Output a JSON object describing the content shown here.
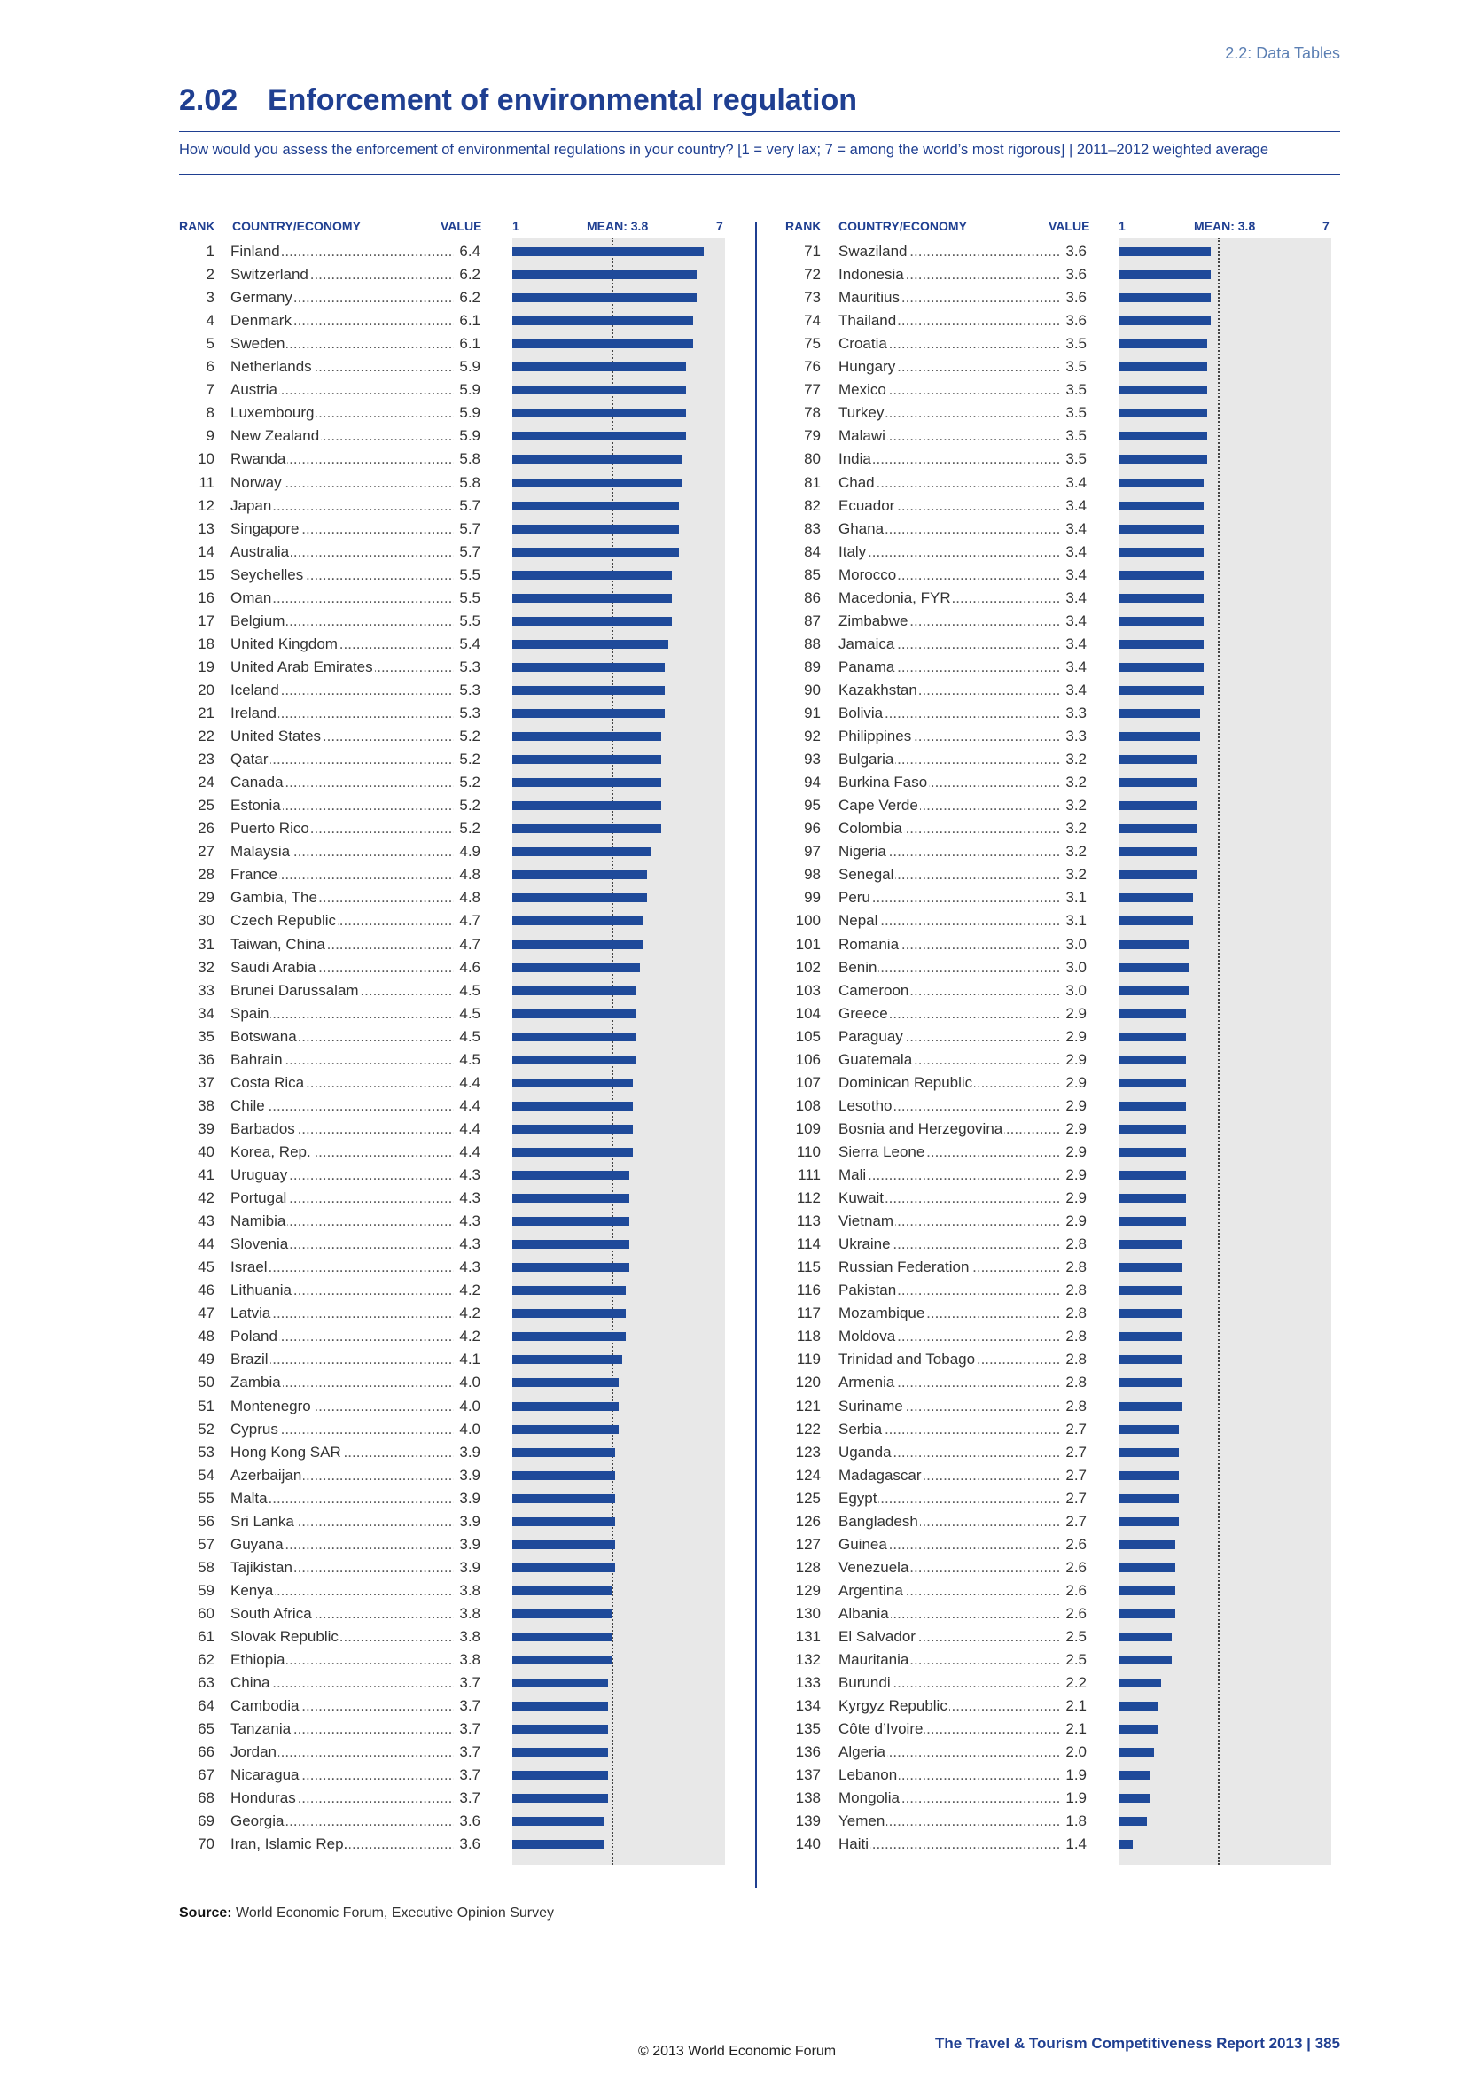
{
  "section_label": "2.2: Data Tables",
  "title_number": "2.02",
  "title_text": "Enforcement of environmental regulation",
  "subtitle": "How would you assess the enforcement of environmental regulations in your country? [1 = very lax; 7 = among the world’s most rigorous] | 2011–2012 weighted average",
  "headers": {
    "rank": "RANK",
    "country": "COUNTRY/ECONOMY",
    "value": "VALUE",
    "scale_min": "1",
    "mean": "MEAN: 3.8",
    "scale_max": "7"
  },
  "source_label": "Source:",
  "source_text": "World Economic Forum, Executive Opinion Survey",
  "copyright": "© 2013 World Economic Forum",
  "footer": "The Travel & Tourism Competitiveness Report 2013 | 385",
  "chart_data": {
    "type": "bar",
    "orientation": "horizontal",
    "xlim": [
      1,
      7
    ],
    "mean": 3.8,
    "bar_color": "#1f4a9a",
    "columns": [
      {
        "rows": [
          {
            "rank": "1",
            "country": "Finland",
            "value": "6.4"
          },
          {
            "rank": "2",
            "country": "Switzerland",
            "value": "6.2"
          },
          {
            "rank": "3",
            "country": "Germany",
            "value": "6.2"
          },
          {
            "rank": "4",
            "country": "Denmark",
            "value": "6.1"
          },
          {
            "rank": "5",
            "country": "Sweden",
            "value": "6.1"
          },
          {
            "rank": "6",
            "country": "Netherlands",
            "value": "5.9"
          },
          {
            "rank": "7",
            "country": "Austria",
            "value": "5.9"
          },
          {
            "rank": "8",
            "country": "Luxembourg",
            "value": "5.9"
          },
          {
            "rank": "9",
            "country": "New Zealand",
            "value": "5.9"
          },
          {
            "rank": "10",
            "country": "Rwanda",
            "value": "5.8"
          },
          {
            "rank": "11",
            "country": "Norway",
            "value": "5.8"
          },
          {
            "rank": "12",
            "country": "Japan",
            "value": "5.7"
          },
          {
            "rank": "13",
            "country": "Singapore",
            "value": "5.7"
          },
          {
            "rank": "14",
            "country": "Australia",
            "value": "5.7"
          },
          {
            "rank": "15",
            "country": "Seychelles",
            "value": "5.5"
          },
          {
            "rank": "16",
            "country": "Oman",
            "value": "5.5"
          },
          {
            "rank": "17",
            "country": "Belgium",
            "value": "5.5"
          },
          {
            "rank": "18",
            "country": "United Kingdom",
            "value": "5.4"
          },
          {
            "rank": "19",
            "country": "United Arab Emirates",
            "value": "5.3"
          },
          {
            "rank": "20",
            "country": "Iceland",
            "value": "5.3"
          },
          {
            "rank": "21",
            "country": "Ireland",
            "value": "5.3"
          },
          {
            "rank": "22",
            "country": "United States",
            "value": "5.2"
          },
          {
            "rank": "23",
            "country": "Qatar",
            "value": "5.2"
          },
          {
            "rank": "24",
            "country": "Canada",
            "value": "5.2"
          },
          {
            "rank": "25",
            "country": "Estonia",
            "value": "5.2"
          },
          {
            "rank": "26",
            "country": "Puerto Rico",
            "value": "5.2"
          },
          {
            "rank": "27",
            "country": "Malaysia",
            "value": "4.9"
          },
          {
            "rank": "28",
            "country": "France",
            "value": "4.8"
          },
          {
            "rank": "29",
            "country": "Gambia, The",
            "value": "4.8"
          },
          {
            "rank": "30",
            "country": "Czech Republic",
            "value": "4.7"
          },
          {
            "rank": "31",
            "country": "Taiwan, China",
            "value": "4.7"
          },
          {
            "rank": "32",
            "country": "Saudi Arabia",
            "value": "4.6"
          },
          {
            "rank": "33",
            "country": "Brunei Darussalam",
            "value": "4.5"
          },
          {
            "rank": "34",
            "country": "Spain",
            "value": "4.5"
          },
          {
            "rank": "35",
            "country": "Botswana",
            "value": "4.5"
          },
          {
            "rank": "36",
            "country": "Bahrain",
            "value": "4.5"
          },
          {
            "rank": "37",
            "country": "Costa Rica",
            "value": "4.4"
          },
          {
            "rank": "38",
            "country": "Chile",
            "value": "4.4"
          },
          {
            "rank": "39",
            "country": "Barbados",
            "value": "4.4"
          },
          {
            "rank": "40",
            "country": "Korea, Rep.",
            "value": "4.4"
          },
          {
            "rank": "41",
            "country": "Uruguay",
            "value": "4.3"
          },
          {
            "rank": "42",
            "country": "Portugal",
            "value": "4.3"
          },
          {
            "rank": "43",
            "country": "Namibia",
            "value": "4.3"
          },
          {
            "rank": "44",
            "country": "Slovenia",
            "value": "4.3"
          },
          {
            "rank": "45",
            "country": "Israel",
            "value": "4.3"
          },
          {
            "rank": "46",
            "country": "Lithuania",
            "value": "4.2"
          },
          {
            "rank": "47",
            "country": "Latvia",
            "value": "4.2"
          },
          {
            "rank": "48",
            "country": "Poland",
            "value": "4.2"
          },
          {
            "rank": "49",
            "country": "Brazil",
            "value": "4.1"
          },
          {
            "rank": "50",
            "country": "Zambia",
            "value": "4.0"
          },
          {
            "rank": "51",
            "country": "Montenegro",
            "value": "4.0"
          },
          {
            "rank": "52",
            "country": "Cyprus",
            "value": "4.0"
          },
          {
            "rank": "53",
            "country": "Hong Kong SAR",
            "value": "3.9"
          },
          {
            "rank": "54",
            "country": "Azerbaijan",
            "value": "3.9"
          },
          {
            "rank": "55",
            "country": "Malta",
            "value": "3.9"
          },
          {
            "rank": "56",
            "country": "Sri Lanka",
            "value": "3.9"
          },
          {
            "rank": "57",
            "country": "Guyana",
            "value": "3.9"
          },
          {
            "rank": "58",
            "country": "Tajikistan",
            "value": "3.9"
          },
          {
            "rank": "59",
            "country": "Kenya",
            "value": "3.8"
          },
          {
            "rank": "60",
            "country": "South Africa",
            "value": "3.8"
          },
          {
            "rank": "61",
            "country": "Slovak Republic",
            "value": "3.8"
          },
          {
            "rank": "62",
            "country": "Ethiopia",
            "value": "3.8"
          },
          {
            "rank": "63",
            "country": "China",
            "value": "3.7"
          },
          {
            "rank": "64",
            "country": "Cambodia",
            "value": "3.7"
          },
          {
            "rank": "65",
            "country": "Tanzania",
            "value": "3.7"
          },
          {
            "rank": "66",
            "country": "Jordan",
            "value": "3.7"
          },
          {
            "rank": "67",
            "country": "Nicaragua",
            "value": "3.7"
          },
          {
            "rank": "68",
            "country": "Honduras",
            "value": "3.7"
          },
          {
            "rank": "69",
            "country": "Georgia",
            "value": "3.6"
          },
          {
            "rank": "70",
            "country": "Iran, Islamic Rep.",
            "value": "3.6"
          }
        ]
      },
      {
        "rows": [
          {
            "rank": "71",
            "country": "Swaziland",
            "value": "3.6"
          },
          {
            "rank": "72",
            "country": "Indonesia",
            "value": "3.6"
          },
          {
            "rank": "73",
            "country": "Mauritius",
            "value": "3.6"
          },
          {
            "rank": "74",
            "country": "Thailand",
            "value": "3.6"
          },
          {
            "rank": "75",
            "country": "Croatia",
            "value": "3.5"
          },
          {
            "rank": "76",
            "country": "Hungary",
            "value": "3.5"
          },
          {
            "rank": "77",
            "country": "Mexico",
            "value": "3.5"
          },
          {
            "rank": "78",
            "country": "Turkey",
            "value": "3.5"
          },
          {
            "rank": "79",
            "country": "Malawi",
            "value": "3.5"
          },
          {
            "rank": "80",
            "country": "India",
            "value": "3.5"
          },
          {
            "rank": "81",
            "country": "Chad",
            "value": "3.4"
          },
          {
            "rank": "82",
            "country": "Ecuador",
            "value": "3.4"
          },
          {
            "rank": "83",
            "country": "Ghana",
            "value": "3.4"
          },
          {
            "rank": "84",
            "country": "Italy",
            "value": "3.4"
          },
          {
            "rank": "85",
            "country": "Morocco",
            "value": "3.4"
          },
          {
            "rank": "86",
            "country": "Macedonia, FYR",
            "value": "3.4"
          },
          {
            "rank": "87",
            "country": "Zimbabwe",
            "value": "3.4"
          },
          {
            "rank": "88",
            "country": "Jamaica",
            "value": "3.4"
          },
          {
            "rank": "89",
            "country": "Panama",
            "value": "3.4"
          },
          {
            "rank": "90",
            "country": "Kazakhstan",
            "value": "3.4"
          },
          {
            "rank": "91",
            "country": "Bolivia",
            "value": "3.3"
          },
          {
            "rank": "92",
            "country": "Philippines",
            "value": "3.3"
          },
          {
            "rank": "93",
            "country": "Bulgaria",
            "value": "3.2"
          },
          {
            "rank": "94",
            "country": "Burkina Faso",
            "value": "3.2"
          },
          {
            "rank": "95",
            "country": "Cape Verde",
            "value": "3.2"
          },
          {
            "rank": "96",
            "country": "Colombia",
            "value": "3.2"
          },
          {
            "rank": "97",
            "country": "Nigeria",
            "value": "3.2"
          },
          {
            "rank": "98",
            "country": "Senegal",
            "value": "3.2"
          },
          {
            "rank": "99",
            "country": "Peru",
            "value": "3.1"
          },
          {
            "rank": "100",
            "country": "Nepal",
            "value": "3.1"
          },
          {
            "rank": "101",
            "country": "Romania",
            "value": "3.0"
          },
          {
            "rank": "102",
            "country": "Benin",
            "value": "3.0"
          },
          {
            "rank": "103",
            "country": "Cameroon",
            "value": "3.0"
          },
          {
            "rank": "104",
            "country": "Greece",
            "value": "2.9"
          },
          {
            "rank": "105",
            "country": "Paraguay",
            "value": "2.9"
          },
          {
            "rank": "106",
            "country": "Guatemala",
            "value": "2.9"
          },
          {
            "rank": "107",
            "country": "Dominican Republic",
            "value": "2.9"
          },
          {
            "rank": "108",
            "country": "Lesotho",
            "value": "2.9"
          },
          {
            "rank": "109",
            "country": "Bosnia and Herzegovina",
            "value": "2.9"
          },
          {
            "rank": "110",
            "country": "Sierra Leone",
            "value": "2.9"
          },
          {
            "rank": "111",
            "country": "Mali",
            "value": "2.9"
          },
          {
            "rank": "112",
            "country": "Kuwait",
            "value": "2.9"
          },
          {
            "rank": "113",
            "country": "Vietnam",
            "value": "2.9"
          },
          {
            "rank": "114",
            "country": "Ukraine",
            "value": "2.8"
          },
          {
            "rank": "115",
            "country": "Russian Federation",
            "value": "2.8"
          },
          {
            "rank": "116",
            "country": "Pakistan",
            "value": "2.8"
          },
          {
            "rank": "117",
            "country": "Mozambique",
            "value": "2.8"
          },
          {
            "rank": "118",
            "country": "Moldova",
            "value": "2.8"
          },
          {
            "rank": "119",
            "country": "Trinidad and Tobago",
            "value": "2.8"
          },
          {
            "rank": "120",
            "country": "Armenia",
            "value": "2.8"
          },
          {
            "rank": "121",
            "country": "Suriname",
            "value": "2.8"
          },
          {
            "rank": "122",
            "country": "Serbia",
            "value": "2.7"
          },
          {
            "rank": "123",
            "country": "Uganda",
            "value": "2.7"
          },
          {
            "rank": "124",
            "country": "Madagascar",
            "value": "2.7"
          },
          {
            "rank": "125",
            "country": "Egypt",
            "value": "2.7"
          },
          {
            "rank": "126",
            "country": "Bangladesh",
            "value": "2.7"
          },
          {
            "rank": "127",
            "country": "Guinea",
            "value": "2.6"
          },
          {
            "rank": "128",
            "country": "Venezuela",
            "value": "2.6"
          },
          {
            "rank": "129",
            "country": "Argentina",
            "value": "2.6"
          },
          {
            "rank": "130",
            "country": "Albania",
            "value": "2.6"
          },
          {
            "rank": "131",
            "country": "El Salvador",
            "value": "2.5"
          },
          {
            "rank": "132",
            "country": "Mauritania",
            "value": "2.5"
          },
          {
            "rank": "133",
            "country": "Burundi",
            "value": "2.2"
          },
          {
            "rank": "134",
            "country": "Kyrgyz Republic",
            "value": "2.1"
          },
          {
            "rank": "135",
            "country": "Côte d’Ivoire",
            "value": "2.1"
          },
          {
            "rank": "136",
            "country": "Algeria",
            "value": "2.0"
          },
          {
            "rank": "137",
            "country": "Lebanon",
            "value": "1.9"
          },
          {
            "rank": "138",
            "country": "Mongolia",
            "value": "1.9"
          },
          {
            "rank": "139",
            "country": "Yemen",
            "value": "1.8"
          },
          {
            "rank": "140",
            "country": "Haiti",
            "value": "1.4"
          }
        ]
      }
    ]
  }
}
